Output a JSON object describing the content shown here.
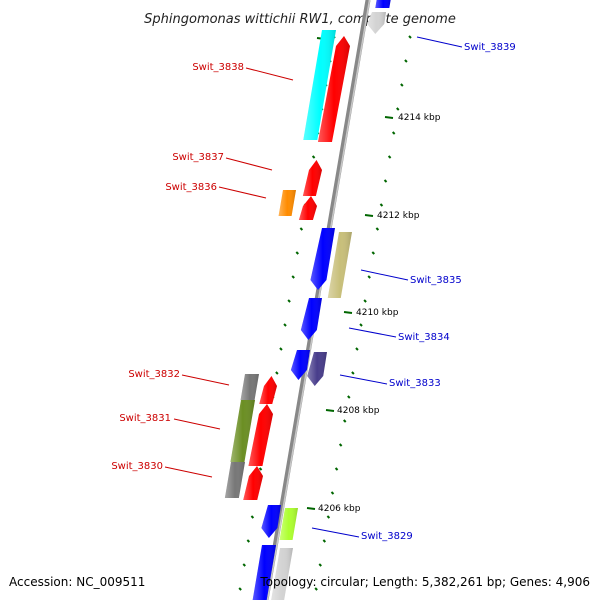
{
  "title": "Sphingomonas wittichii RW1, complete genome",
  "accession": "Accession: NC_009511",
  "topology": "Topology: circular; Length: 5,382,261 bp; Genes: 4,906",
  "colors": {
    "forward_label": "#cc0000",
    "reverse_label": "#0000cc",
    "backbone": "#888888",
    "tick": "#006600",
    "cyan": "#00ffff",
    "red": "#ff0000",
    "blue": "#0000ff",
    "orange": "#ff8c00",
    "khaki": "#c8bf7a",
    "darkslate": "#483d8b",
    "gray": "#777777",
    "olive": "#6b8e23",
    "lime": "#adff2f",
    "lightgray": "#d3d3d3"
  },
  "kbp_ticks": [
    {
      "text": "4214 kbp"
    },
    {
      "text": "4212 kbp"
    },
    {
      "text": "4210 kbp"
    },
    {
      "text": "4208 kbp"
    },
    {
      "text": "4206 kbp"
    }
  ],
  "gene_labels": [
    {
      "name": "Swit_3839",
      "strand": "reverse"
    },
    {
      "name": "Swit_3838",
      "strand": "forward"
    },
    {
      "name": "Swit_3837",
      "strand": "forward"
    },
    {
      "name": "Swit_3836",
      "strand": "forward"
    },
    {
      "name": "Swit_3835",
      "strand": "reverse"
    },
    {
      "name": "Swit_3834",
      "strand": "reverse"
    },
    {
      "name": "Swit_3833",
      "strand": "reverse"
    },
    {
      "name": "Swit_3832",
      "strand": "forward"
    },
    {
      "name": "Swit_3831",
      "strand": "forward"
    },
    {
      "name": "Swit_3830",
      "strand": "forward"
    },
    {
      "name": "Swit_3829",
      "strand": "reverse"
    }
  ]
}
